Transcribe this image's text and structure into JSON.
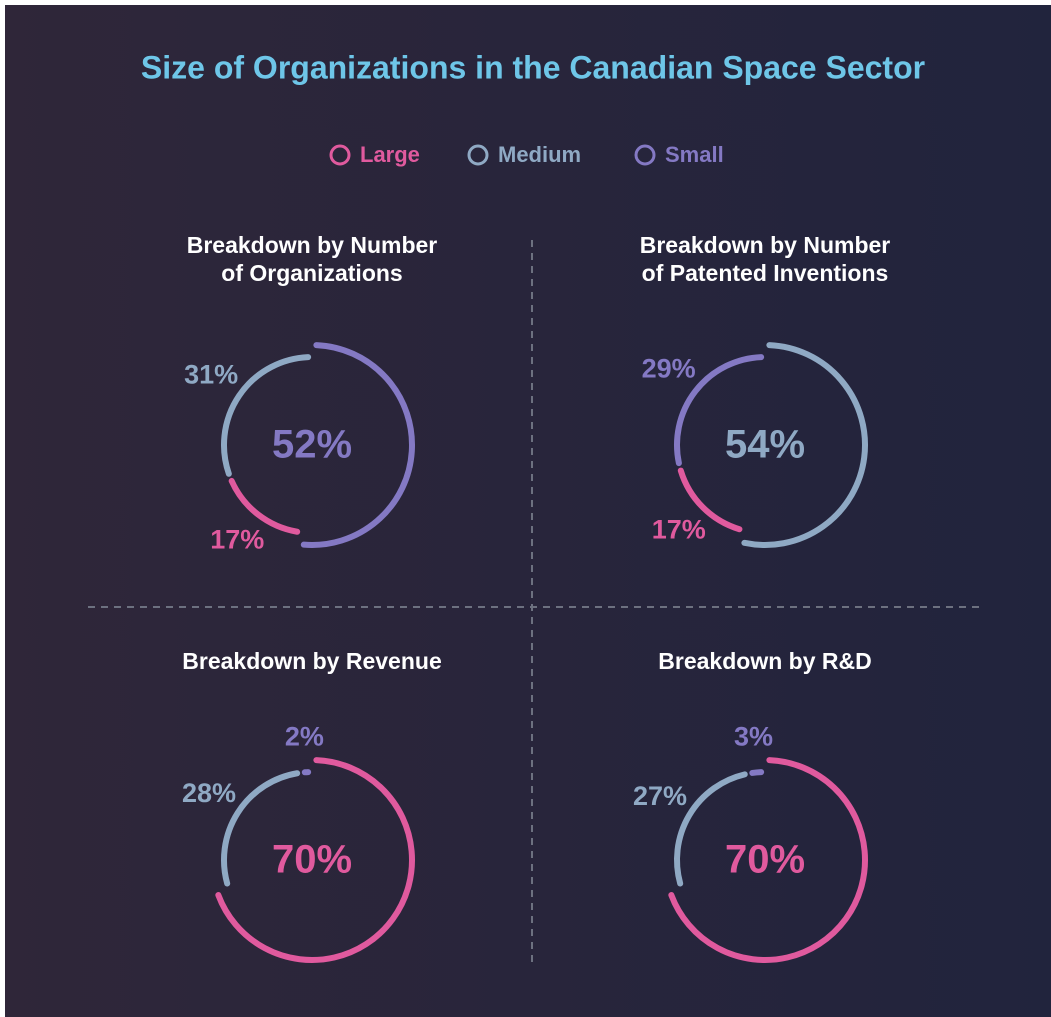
{
  "title": "Size of Organizations in the Canadian Space Sector",
  "legend": [
    {
      "name": "Large",
      "color": "#e05a9e"
    },
    {
      "name": "Medium",
      "color": "#8fa9c4"
    },
    {
      "name": "Small",
      "color": "#8479c4"
    }
  ],
  "chart_data": [
    {
      "type": "donut",
      "title": [
        "Breakdown by Number",
        "of Organizations"
      ],
      "values": [
        52,
        17,
        31
      ],
      "value_labels": [
        "52%",
        "17%",
        "31%"
      ],
      "colors": [
        "#8479c4",
        "#e05a9e",
        "#8fa9c4"
      ]
    },
    {
      "type": "donut",
      "title": [
        "Breakdown by Number",
        "of Patented Inventions"
      ],
      "values": [
        54,
        17,
        29
      ],
      "value_labels": [
        "54%",
        "17%",
        "29%"
      ],
      "colors": [
        "#8fa9c4",
        "#e05a9e",
        "#8479c4"
      ]
    },
    {
      "type": "donut",
      "title": [
        "Breakdown by Revenue"
      ],
      "values": [
        70,
        28,
        2
      ],
      "value_labels": [
        "70%",
        "28%",
        "2%"
      ],
      "colors": [
        "#e05a9e",
        "#8fa9c4",
        "#8479c4"
      ]
    },
    {
      "type": "donut",
      "title": [
        "Breakdown by R&D"
      ],
      "values": [
        70,
        27,
        3
      ],
      "value_labels": [
        "70%",
        "27%",
        "3%"
      ],
      "colors": [
        "#e05a9e",
        "#8fa9c4",
        "#8479c4"
      ]
    }
  ]
}
